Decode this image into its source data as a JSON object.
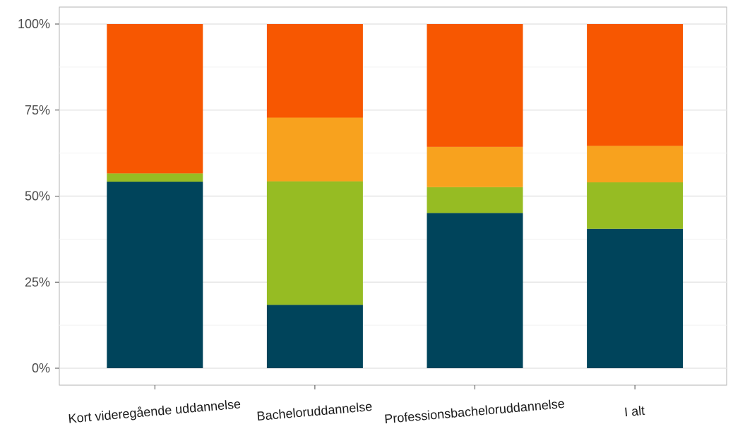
{
  "chart_data": {
    "type": "bar",
    "stacked": true,
    "percent": true,
    "categories": [
      "Kort videregående uddannelse",
      "Bacheloruddannelse",
      "Professionsbacheloruddannelse",
      "I alt"
    ],
    "series": [
      {
        "values": [
          54.2,
          18.4,
          45.1,
          40.5
        ],
        "color": "#00445b"
      },
      {
        "values": [
          2.4,
          35.9,
          7.5,
          13.5
        ],
        "color": "#96bc23"
      },
      {
        "values": [
          0,
          18.5,
          11.7,
          10.6
        ],
        "color": "#f8a21e"
      },
      {
        "values": [
          43.4,
          27.2,
          35.7,
          35.4
        ],
        "color": "#f75701"
      }
    ],
    "ylim": [
      0,
      100
    ],
    "yticks": [
      "0%",
      "25%",
      "50%",
      "75%",
      "100%"
    ],
    "ytick_values": [
      0,
      25,
      50,
      75,
      100
    ],
    "grid": true,
    "xlabel": "",
    "ylabel": "",
    "title": ""
  }
}
